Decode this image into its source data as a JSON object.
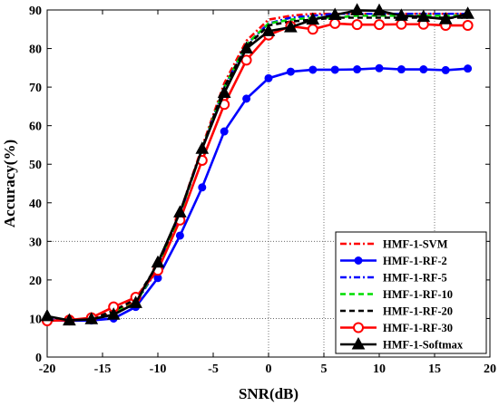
{
  "chart_data": {
    "type": "line",
    "title": "",
    "xlabel": "SNR(dB)",
    "ylabel": "Accuracy(%)",
    "xlim": [
      -20,
      20
    ],
    "ylim": [
      0,
      90
    ],
    "xticks": [
      -20,
      -15,
      -10,
      -5,
      0,
      5,
      10,
      15,
      20
    ],
    "yticks": [
      0,
      10,
      20,
      30,
      40,
      50,
      60,
      70,
      80,
      90
    ],
    "grid": "partial dotted lines: vertical at x = 0, 5, 15; horizontal at y = 10, 30",
    "legend_position": "bottom-right",
    "x": [
      -20,
      -18,
      -16,
      -14,
      -12,
      -10,
      -8,
      -6,
      -4,
      -2,
      0,
      2,
      4,
      6,
      8,
      10,
      12,
      14,
      16,
      18
    ],
    "series": [
      {
        "name": "HMF-1-SVM",
        "color": "#ff0000",
        "dash": "dash-dot",
        "marker": "none",
        "values": [
          9.8,
          9.5,
          9.8,
          11.5,
          14.5,
          23.5,
          37.5,
          54.5,
          71,
          82,
          87.5,
          88.5,
          89,
          89,
          89,
          89,
          89,
          89,
          89,
          89
        ]
      },
      {
        "name": "HMF-1-RF-2",
        "color": "#0000ff",
        "dash": "solid",
        "marker": "dot",
        "values": [
          9.6,
          9.4,
          9.5,
          10.0,
          13.0,
          20.5,
          31.5,
          44.0,
          58.5,
          67.0,
          72.3,
          74.0,
          74.5,
          74.5,
          74.6,
          74.9,
          74.6,
          74.6,
          74.4,
          74.8
        ]
      },
      {
        "name": "HMF-1-RF-5",
        "color": "#0000ff",
        "dash": "dash-dot",
        "marker": "none",
        "values": [
          9.7,
          9.5,
          9.7,
          11.0,
          14.0,
          23.0,
          37.0,
          54.0,
          70,
          81,
          86.5,
          88,
          88.5,
          89,
          89,
          89,
          89,
          89,
          89,
          89
        ]
      },
      {
        "name": "HMF-1-RF-10",
        "color": "#00dd00",
        "dash": "dashed",
        "marker": "none",
        "values": [
          9.8,
          9.6,
          9.8,
          11.5,
          14.0,
          23.5,
          37.0,
          54.0,
          70,
          81,
          86.5,
          87.5,
          88,
          88,
          88.5,
          88.5,
          88.5,
          88.5,
          88.5,
          88.5
        ]
      },
      {
        "name": "HMF-1-RF-20",
        "color": "#000000",
        "dash": "dashed",
        "marker": "none",
        "values": [
          9.8,
          9.6,
          9.9,
          12.0,
          15.0,
          24.0,
          37.5,
          54.0,
          70,
          80.5,
          86,
          87,
          87.5,
          88,
          88,
          88,
          88,
          88,
          88,
          88
        ]
      },
      {
        "name": "HMF-1-RF-30",
        "color": "#ff0000",
        "dash": "solid",
        "marker": "circle",
        "values": [
          9.4,
          9.6,
          10.2,
          13.0,
          15.5,
          22.5,
          35.5,
          51.0,
          65.5,
          77.0,
          83.5,
          85.8,
          85.0,
          86.5,
          86.2,
          86.2,
          86.3,
          86.3,
          86.0,
          86.0
        ]
      },
      {
        "name": "HMF-1-Softmax",
        "color": "#000000",
        "dash": "solid",
        "marker": "triangle",
        "values": [
          10.6,
          9.5,
          9.8,
          11.0,
          14.0,
          24.5,
          37.5,
          54.0,
          68.5,
          80.0,
          84.5,
          85.5,
          87.5,
          88.7,
          89.9,
          89.8,
          88.5,
          88.2,
          87.6,
          89.0
        ]
      }
    ]
  }
}
